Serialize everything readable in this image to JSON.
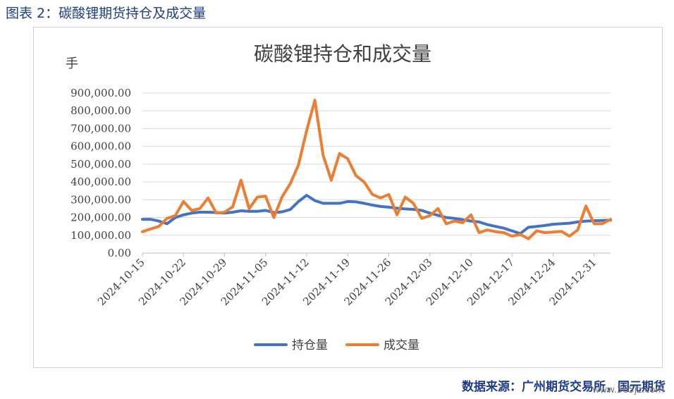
{
  "figure_caption": "图表 2：碳酸锂期货持仓及成交量",
  "source_note": "数据来源：广州期货交易所，国元期货",
  "watermark": "www.365jz.com",
  "chart_data": {
    "type": "line",
    "title": "碳酸锂持仓和成交量",
    "ylabel": "手",
    "xlabel": "",
    "ylim": [
      0,
      900000
    ],
    "yticks": [
      "0.00",
      "100,000.00",
      "200,000.00",
      "300,000.00",
      "400,000.00",
      "500,000.00",
      "600,000.00",
      "700,000.00",
      "800,000.00",
      "900,000.00"
    ],
    "x_tick_labels": [
      "2024-10-15",
      "2024-10-22",
      "2024-10-29",
      "2024-11-05",
      "2024-11-12",
      "2024-11-19",
      "2024-11-26",
      "2024-12-03",
      "2024-12-10",
      "2024-12-17",
      "2024-12-24",
      "2024-12-31"
    ],
    "grid": "horizontal",
    "legend_position": "bottom",
    "x": [
      "2024-10-15",
      "2024-10-16",
      "2024-10-17",
      "2024-10-18",
      "2024-10-21",
      "2024-10-22",
      "2024-10-23",
      "2024-10-24",
      "2024-10-25",
      "2024-10-28",
      "2024-10-29",
      "2024-10-30",
      "2024-10-31",
      "2024-11-01",
      "2024-11-04",
      "2024-11-05",
      "2024-11-06",
      "2024-11-07",
      "2024-11-08",
      "2024-11-11",
      "2024-11-12",
      "2024-11-13",
      "2024-11-14",
      "2024-11-15",
      "2024-11-18",
      "2024-11-19",
      "2024-11-20",
      "2024-11-21",
      "2024-11-22",
      "2024-11-25",
      "2024-11-26",
      "2024-11-27",
      "2024-11-28",
      "2024-11-29",
      "2024-12-02",
      "2024-12-03",
      "2024-12-04",
      "2024-12-05",
      "2024-12-06",
      "2024-12-09",
      "2024-12-10",
      "2024-12-11",
      "2024-12-12",
      "2024-12-13",
      "2024-12-16",
      "2024-12-17",
      "2024-12-18",
      "2024-12-19",
      "2024-12-20",
      "2024-12-23",
      "2024-12-24",
      "2024-12-25",
      "2024-12-26",
      "2024-12-27",
      "2024-12-30",
      "2024-12-31",
      "2025-01-02",
      "2025-01-03"
    ],
    "series": [
      {
        "name": "持仓量",
        "color": "#4472C4",
        "values": [
          190000,
          190000,
          180000,
          165000,
          200000,
          215000,
          225000,
          230000,
          230000,
          228000,
          225000,
          230000,
          238000,
          235000,
          235000,
          240000,
          228000,
          232000,
          245000,
          290000,
          325000,
          295000,
          280000,
          280000,
          280000,
          290000,
          288000,
          280000,
          270000,
          262000,
          258000,
          252000,
          248000,
          246000,
          240000,
          225000,
          212000,
          200000,
          195000,
          188000,
          180000,
          175000,
          160000,
          150000,
          140000,
          125000,
          110000,
          145000,
          150000,
          155000,
          162000,
          165000,
          168000,
          175000,
          180000,
          182000,
          183000,
          185000
        ]
      },
      {
        "name": "成交量",
        "color": "#ED7D31",
        "values": [
          120000,
          135000,
          150000,
          195000,
          210000,
          290000,
          240000,
          250000,
          310000,
          225000,
          230000,
          260000,
          410000,
          250000,
          315000,
          320000,
          200000,
          315000,
          390000,
          495000,
          690000,
          860000,
          550000,
          410000,
          560000,
          530000,
          435000,
          400000,
          330000,
          310000,
          330000,
          215000,
          315000,
          280000,
          195000,
          210000,
          250000,
          165000,
          180000,
          170000,
          215000,
          115000,
          130000,
          120000,
          115000,
          95000,
          105000,
          80000,
          125000,
          115000,
          118000,
          122000,
          95000,
          130000,
          265000,
          165000,
          165000,
          190000
        ]
      }
    ]
  }
}
